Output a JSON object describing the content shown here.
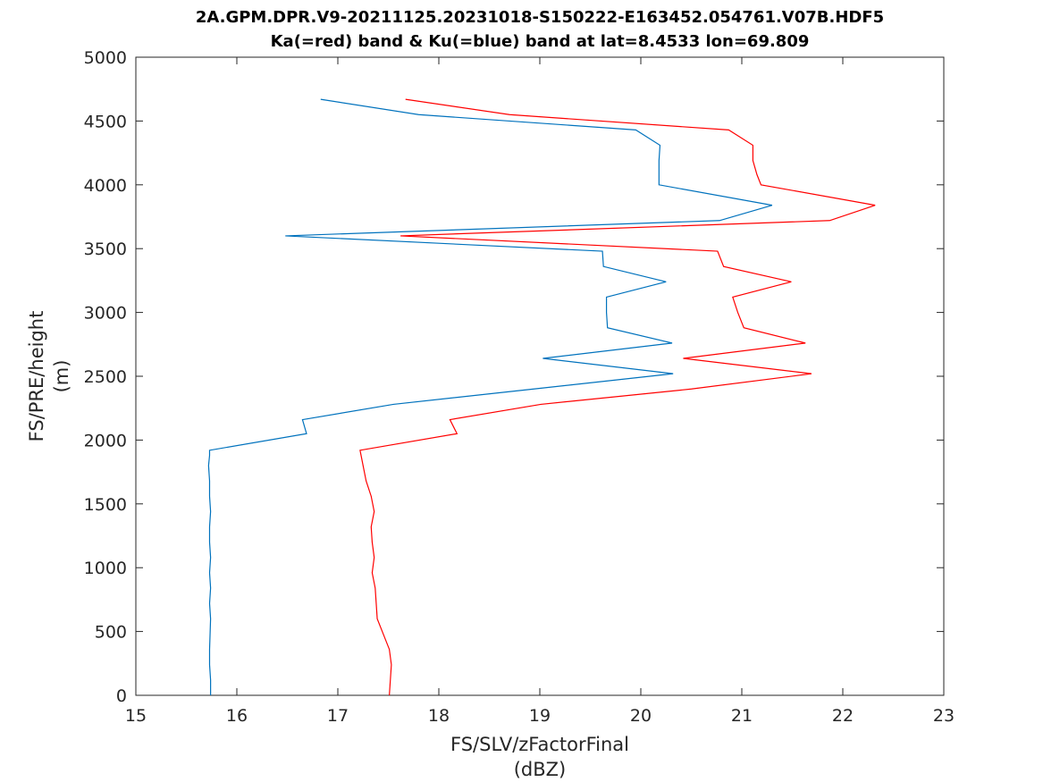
{
  "chart_data": {
    "type": "line",
    "title": "2A.GPM.DPR.V9-20211125.20231018-S150222-E163452.054761.V07B.HDF5",
    "subtitle": "Ka(=red) band & Ku(=blue) band at lat=8.4533 lon=69.809",
    "xlabel": "FS/SLV/zFactorFinal",
    "xunit": "(dBZ)",
    "ylabel": "FS/PRE/height",
    "yunit": "(m)",
    "xlim": [
      15,
      23
    ],
    "ylim": [
      0,
      5000
    ],
    "xticks": [
      "15",
      "16",
      "17",
      "18",
      "19",
      "20",
      "21",
      "22",
      "23"
    ],
    "yticks": [
      "0",
      "500",
      "1000",
      "1500",
      "2000",
      "2500",
      "3000",
      "3500",
      "4000",
      "4500",
      "5000"
    ],
    "grid": false,
    "series": [
      {
        "color": "#ff0000",
        "x": [
          17.51,
          17.52,
          17.53,
          17.51,
          17.39,
          17.38,
          17.37,
          17.34,
          17.36,
          17.34,
          17.33,
          17.36,
          17.33,
          17.28,
          17.25,
          17.23,
          17.22,
          18.18,
          18.11,
          19.01,
          20.5,
          21.69,
          20.42,
          21.63,
          21.02,
          20.96,
          20.91,
          21.49,
          20.82,
          20.76,
          17.62,
          21.87,
          22.32,
          21.19,
          21.15,
          21.11,
          21.11,
          20.87,
          18.7,
          17.67
        ],
        "y": [
          0,
          120,
          240,
          360,
          600,
          720,
          840,
          960,
          1080,
          1200,
          1320,
          1440,
          1560,
          1680,
          1800,
          1880,
          1920,
          2050,
          2160,
          2280,
          2400,
          2520,
          2640,
          2760,
          2880,
          3000,
          3120,
          3240,
          3360,
          3480,
          3600,
          3720,
          3840,
          4000,
          4080,
          4190,
          4310,
          4430,
          4550,
          4670
        ]
      },
      {
        "color": "#0072bd",
        "x": [
          15.74,
          15.74,
          15.73,
          15.73,
          15.74,
          15.73,
          15.74,
          15.73,
          15.74,
          15.73,
          15.73,
          15.74,
          15.73,
          15.73,
          15.72,
          15.73,
          15.73,
          16.69,
          16.65,
          17.55,
          18.94,
          20.32,
          19.03,
          20.31,
          19.67,
          19.66,
          19.66,
          20.25,
          19.63,
          19.62,
          16.48,
          20.78,
          21.3,
          20.18,
          20.18,
          20.18,
          20.19,
          19.95,
          17.8,
          16.83
        ],
        "y": [
          0,
          120,
          240,
          360,
          600,
          720,
          840,
          960,
          1080,
          1200,
          1320,
          1440,
          1560,
          1680,
          1800,
          1880,
          1920,
          2050,
          2160,
          2280,
          2400,
          2520,
          2640,
          2760,
          2880,
          3000,
          3120,
          3240,
          3360,
          3480,
          3600,
          3720,
          3840,
          4000,
          4080,
          4190,
          4310,
          4430,
          4550,
          4670
        ]
      }
    ]
  }
}
